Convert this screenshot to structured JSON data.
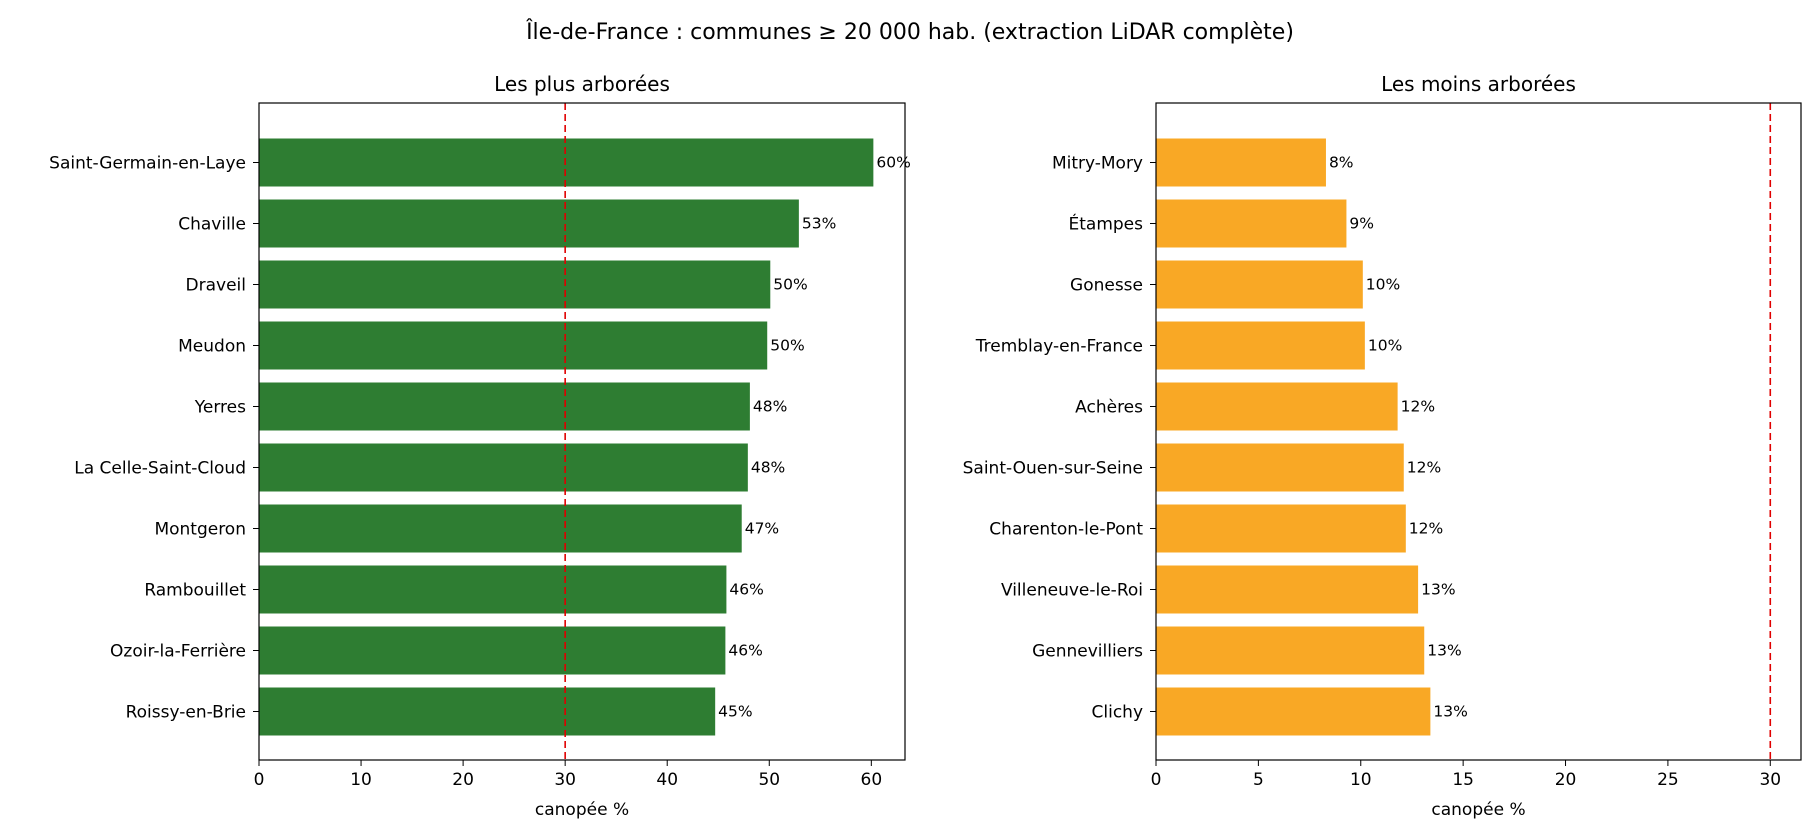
{
  "suptitle": "Île-de-France : communes ≥ 20 000 hab. (extraction LiDAR complète)",
  "chart_data": [
    {
      "type": "bar",
      "orientation": "horizontal",
      "title": "Les plus arborées",
      "xlabel": "canopée %",
      "ylabel": "",
      "xlim": [
        0,
        63.3
      ],
      "xticks": [
        0,
        10,
        20,
        30,
        40,
        50,
        60
      ],
      "color": "#2e7d32",
      "reference_line": {
        "value": 30,
        "color": "#e00000",
        "style": "dashed"
      },
      "categories": [
        "Saint-Germain-en-Laye",
        "Chaville",
        "Draveil",
        "Meudon",
        "Yerres",
        "La Celle-Saint-Cloud",
        "Montgeron",
        "Rambouillet",
        "Ozoir-la-Ferrière",
        "Roissy-en-Brie"
      ],
      "values": [
        60.2,
        52.9,
        50.1,
        49.8,
        48.1,
        47.9,
        47.3,
        45.8,
        45.7,
        44.7
      ],
      "data_labels": [
        "60%",
        "53%",
        "50%",
        "50%",
        "48%",
        "48%",
        "47%",
        "46%",
        "46%",
        "45%"
      ]
    },
    {
      "type": "bar",
      "orientation": "horizontal",
      "title": "Les moins arborées",
      "xlabel": "canopée %",
      "ylabel": "",
      "xlim": [
        0,
        31.5
      ],
      "xticks": [
        0,
        5,
        10,
        15,
        20,
        25,
        30
      ],
      "color": "#f9a825",
      "reference_line": {
        "value": 30,
        "color": "#e00000",
        "style": "dashed"
      },
      "categories": [
        "Mitry-Mory",
        "Étampes",
        "Gonesse",
        "Tremblay-en-France",
        "Achères",
        "Saint-Ouen-sur-Seine",
        "Charenton-le-Pont",
        "Villeneuve-le-Roi",
        "Gennevilliers",
        "Clichy"
      ],
      "values": [
        8.3,
        9.3,
        10.1,
        10.2,
        11.8,
        12.1,
        12.2,
        12.8,
        13.1,
        13.4
      ],
      "data_labels": [
        "8%",
        "9%",
        "10%",
        "10%",
        "12%",
        "12%",
        "12%",
        "13%",
        "13%",
        "13%"
      ]
    }
  ]
}
